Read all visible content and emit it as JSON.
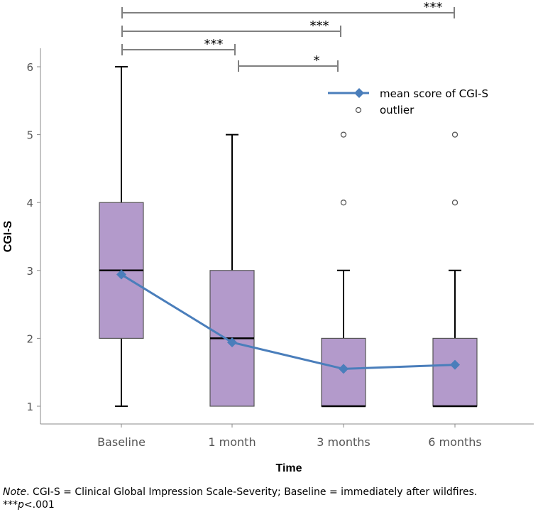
{
  "chart_data": {
    "type": "box",
    "xlabel": "Time",
    "ylabel": "CGI-S",
    "ylim": [
      0.75,
      6.3
    ],
    "yticks": [
      1,
      2,
      3,
      4,
      5,
      6
    ],
    "categories": [
      "Baseline",
      "1 month",
      "3 months",
      "6 months"
    ],
    "boxes": [
      {
        "category": "Baseline",
        "min": 1,
        "q1": 2,
        "median": 3,
        "q3": 4,
        "max": 6,
        "outliers": []
      },
      {
        "category": "1 month",
        "min": 1,
        "q1": 1,
        "median": 2,
        "q3": 3,
        "max": 5,
        "outliers": []
      },
      {
        "category": "3 months",
        "min": 1,
        "q1": 1,
        "median": 1,
        "q3": 2,
        "max": 3,
        "outliers": [
          4,
          5
        ]
      },
      {
        "category": "6 months",
        "min": 1,
        "q1": 1,
        "median": 1,
        "q3": 2,
        "max": 3,
        "outliers": [
          4,
          5
        ]
      }
    ],
    "series": [
      {
        "name": "mean score of CGI-S",
        "values": [
          2.94,
          1.94,
          1.55,
          1.61
        ]
      }
    ],
    "legend": {
      "position": "top-right",
      "entries": [
        "mean score of CGI-S",
        "outlier"
      ]
    },
    "brackets": [
      {
        "from": "Baseline",
        "to": "6 months",
        "label": "***"
      },
      {
        "from": "Baseline",
        "to": "3 months",
        "label": "***"
      },
      {
        "from": "Baseline",
        "to": "1 month",
        "label": "***"
      },
      {
        "from": "1 month",
        "to": "3 months",
        "label": "*"
      }
    ],
    "colors": {
      "box_fill": "#b39acb",
      "box_stroke": "#555555",
      "mean_line": "#4a7ebb",
      "axis": "#888888",
      "bracket": "#808080"
    }
  },
  "note": {
    "label": "Note",
    "text": ". CGI-S = Clinical Global Impression Scale-Severity; Baseline = immediately after wildfires.",
    "sig_stars": "***",
    "sig_p": "p",
    "sig_rest": "<.001"
  }
}
